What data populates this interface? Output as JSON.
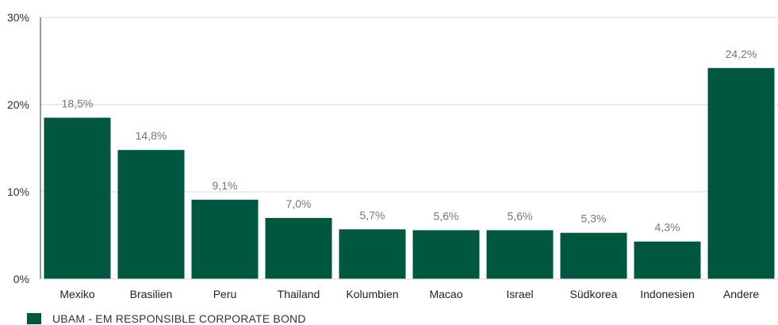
{
  "chart_data": {
    "type": "bar",
    "categories": [
      "Mexiko",
      "Brasilien",
      "Peru",
      "Thailand",
      "Kolumbien",
      "Macao",
      "Israel",
      "Südkorea",
      "Indonesien",
      "Andere"
    ],
    "series": [
      {
        "name": "UBAM - EM RESPONSIBLE CORPORATE BOND",
        "values": [
          18.5,
          14.8,
          9.1,
          7.0,
          5.7,
          5.6,
          5.6,
          5.3,
          4.3,
          24.2
        ],
        "data_labels": [
          "18,5%",
          "14,8%",
          "9,1%",
          "7,0%",
          "5,7%",
          "5,6%",
          "5,6%",
          "5,3%",
          "4,3%",
          "24,2%"
        ]
      }
    ],
    "ylim": [
      0,
      30
    ],
    "yticks": [
      0,
      10,
      20,
      30
    ],
    "ytick_labels": [
      "0%",
      "10%",
      "20%",
      "30%"
    ],
    "grid": true,
    "legend_position": "bottom-left",
    "colors": {
      "bar": "#00573f",
      "grid": "#d9d9d9",
      "axis": "#333333"
    }
  },
  "legend": {
    "label": "UBAM - EM RESPONSIBLE CORPORATE BOND"
  }
}
